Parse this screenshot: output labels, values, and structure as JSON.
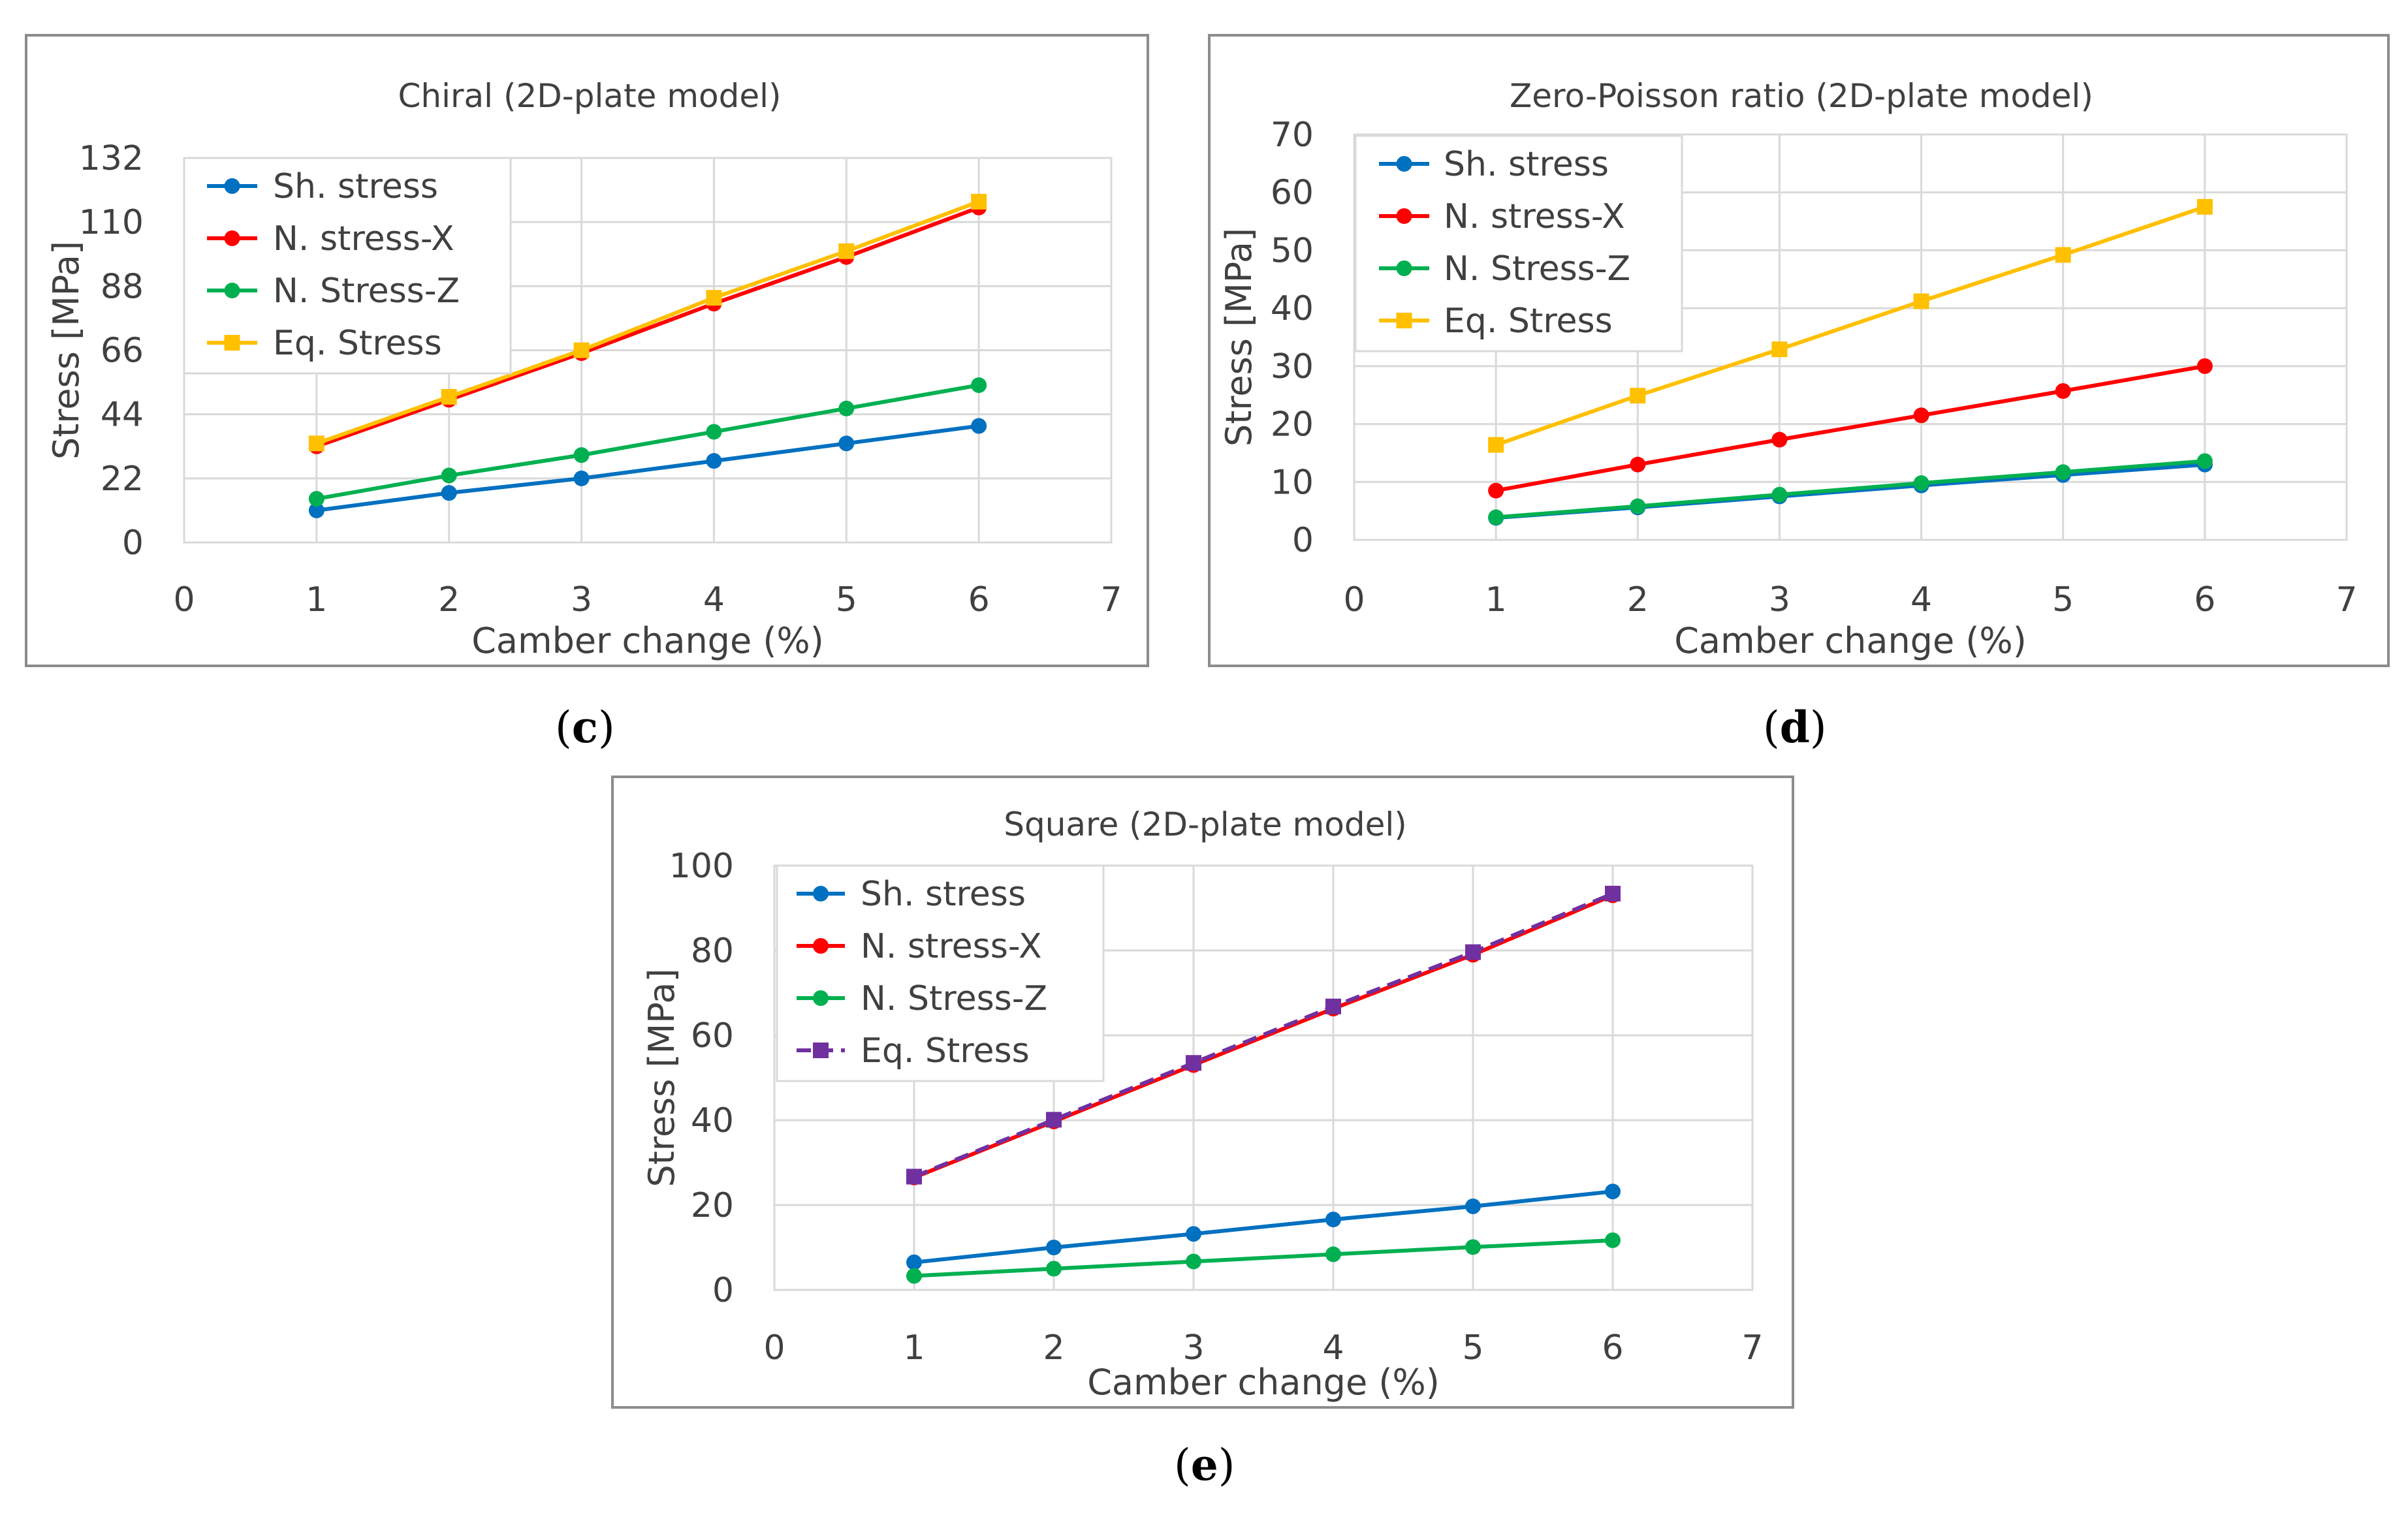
{
  "captions": {
    "c": "c",
    "d": "d",
    "e": "e"
  },
  "chart_data": [
    {
      "id": "c",
      "type": "line",
      "title": "Chiral (2D-plate model)",
      "xlabel": "Camber change (%)",
      "ylabel": "Stress [MPa]",
      "xlim": [
        0,
        7
      ],
      "xticks": [
        0,
        1,
        2,
        3,
        4,
        5,
        6,
        7
      ],
      "ylim": [
        0,
        132
      ],
      "yticks": [
        0,
        22,
        44,
        66,
        88,
        110,
        132
      ],
      "grid": true,
      "legend_position": "top-left",
      "x": [
        1,
        2,
        3,
        4,
        5,
        6
      ],
      "series": [
        {
          "name": "Sh. stress",
          "color": "#0070c0",
          "marker": "circle",
          "dash": false,
          "values": [
            11,
            17,
            22,
            28,
            34,
            40
          ]
        },
        {
          "name": "N. stress-X",
          "color": "#ff0000",
          "marker": "circle",
          "dash": false,
          "values": [
            33,
            49,
            65,
            82,
            98,
            115
          ]
        },
        {
          "name": "N. Stress-Z",
          "color": "#00b050",
          "marker": "circle",
          "dash": false,
          "values": [
            15,
            23,
            30,
            38,
            46,
            54
          ]
        },
        {
          "name": "Eq. Stress",
          "color": "#ffc000",
          "marker": "square",
          "dash": false,
          "values": [
            34,
            50,
            66,
            84,
            100,
            117
          ]
        }
      ]
    },
    {
      "id": "d",
      "type": "line",
      "title": "Zero-Poisson ratio (2D-plate model)",
      "xlabel": "Camber change (%)",
      "ylabel": "Stress [MPa]",
      "xlim": [
        0,
        7
      ],
      "xticks": [
        0,
        1,
        2,
        3,
        4,
        5,
        6,
        7
      ],
      "ylim": [
        0,
        70
      ],
      "yticks": [
        0,
        10,
        20,
        30,
        40,
        50,
        60,
        70
      ],
      "grid": true,
      "legend_position": "top-left",
      "x": [
        1,
        2,
        3,
        4,
        5,
        6
      ],
      "series": [
        {
          "name": "Sh. stress",
          "color": "#0070c0",
          "marker": "circle",
          "dash": false,
          "values": [
            3.8,
            5.6,
            7.5,
            9.4,
            11.2,
            13.0
          ]
        },
        {
          "name": "N. stress-X",
          "color": "#ff0000",
          "marker": "circle",
          "dash": false,
          "values": [
            8.5,
            13.0,
            17.3,
            21.5,
            25.7,
            30.0
          ]
        },
        {
          "name": "N. Stress-Z",
          "color": "#00b050",
          "marker": "circle",
          "dash": false,
          "values": [
            3.9,
            5.8,
            7.8,
            9.8,
            11.7,
            13.6
          ]
        },
        {
          "name": "Eq. Stress",
          "color": "#ffc000",
          "marker": "square",
          "dash": false,
          "values": [
            16.4,
            24.9,
            32.9,
            41.2,
            49.2,
            57.5
          ]
        }
      ]
    },
    {
      "id": "e",
      "type": "line",
      "title": "Square (2D-plate model)",
      "xlabel": "Camber change (%)",
      "ylabel": "Stress [MPa]",
      "xlim": [
        0,
        7
      ],
      "xticks": [
        0,
        1,
        2,
        3,
        4,
        5,
        6,
        7
      ],
      "ylim": [
        0,
        100
      ],
      "yticks": [
        0,
        20,
        40,
        60,
        80,
        100
      ],
      "grid": true,
      "legend_position": "top-left",
      "x": [
        1,
        2,
        3,
        4,
        5,
        6
      ],
      "series": [
        {
          "name": "Sh. stress",
          "color": "#0070c0",
          "marker": "circle",
          "dash": false,
          "values": [
            6.5,
            10,
            13.2,
            16.6,
            19.7,
            23.2
          ]
        },
        {
          "name": "N. stress-X",
          "color": "#ff0000",
          "marker": "circle",
          "dash": false,
          "values": [
            26.5,
            39.7,
            53,
            66.3,
            79,
            93
          ]
        },
        {
          "name": "N. Stress-Z",
          "color": "#00b050",
          "marker": "circle",
          "dash": false,
          "values": [
            3.3,
            5,
            6.7,
            8.4,
            10.1,
            11.7
          ]
        },
        {
          "name": "Eq. Stress",
          "color": "#7030a0",
          "marker": "square",
          "dash": true,
          "values": [
            26.7,
            40.1,
            53.5,
            66.8,
            79.6,
            93.4
          ]
        }
      ]
    }
  ]
}
